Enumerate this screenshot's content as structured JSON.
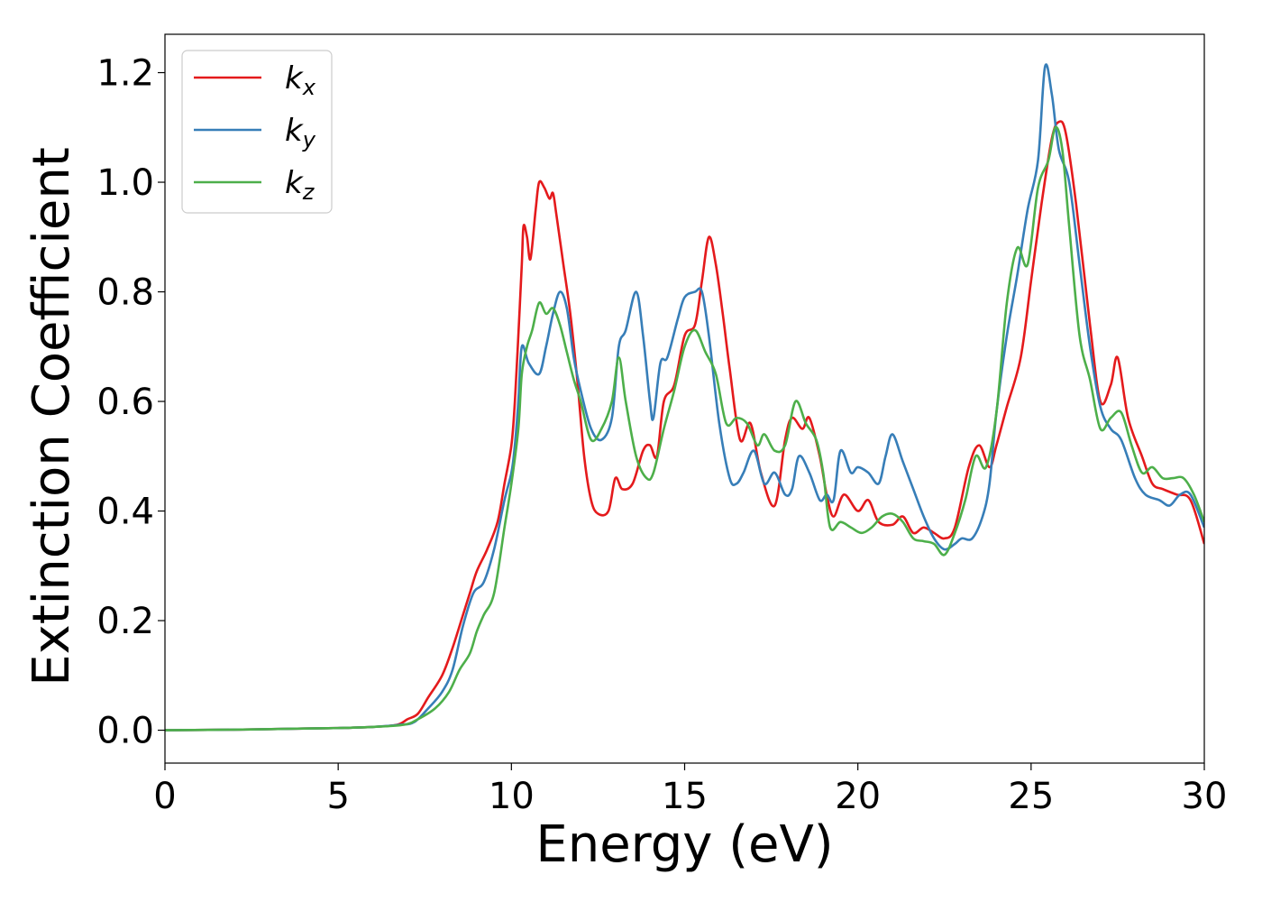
{
  "chart_data": {
    "type": "line",
    "xlabel": "Energy (eV)",
    "ylabel": "Extinction Coefficient",
    "xlim": [
      0,
      30
    ],
    "ylim": [
      -0.06,
      1.27
    ],
    "x_ticks": [
      0,
      5,
      10,
      15,
      20,
      25,
      30
    ],
    "x_tick_labels": [
      "0",
      "5",
      "10",
      "15",
      "20",
      "25",
      "30"
    ],
    "y_ticks": [
      0.0,
      0.2,
      0.4,
      0.6,
      0.8,
      1.0,
      1.2
    ],
    "y_tick_labels": [
      "0.0",
      "0.2",
      "0.4",
      "0.6",
      "0.8",
      "1.0",
      "1.2"
    ],
    "grid": false,
    "legend_position": "top-left",
    "series": [
      {
        "name": "k_x",
        "label_base": "k",
        "label_sub": "x",
        "color": "#e41a1c",
        "points": [
          [
            0,
            0.0
          ],
          [
            2,
            0.001
          ],
          [
            4,
            0.003
          ],
          [
            5,
            0.004
          ],
          [
            6,
            0.006
          ],
          [
            6.7,
            0.01
          ],
          [
            7.0,
            0.02
          ],
          [
            7.3,
            0.03
          ],
          [
            7.6,
            0.06
          ],
          [
            8.0,
            0.1
          ],
          [
            8.3,
            0.15
          ],
          [
            8.6,
            0.21
          ],
          [
            8.8,
            0.25
          ],
          [
            9.0,
            0.29
          ],
          [
            9.3,
            0.33
          ],
          [
            9.6,
            0.38
          ],
          [
            9.8,
            0.45
          ],
          [
            10.0,
            0.52
          ],
          [
            10.1,
            0.6
          ],
          [
            10.2,
            0.72
          ],
          [
            10.3,
            0.85
          ],
          [
            10.35,
            0.92
          ],
          [
            10.45,
            0.9
          ],
          [
            10.55,
            0.86
          ],
          [
            10.7,
            0.95
          ],
          [
            10.8,
            1.0
          ],
          [
            10.95,
            0.99
          ],
          [
            11.1,
            0.97
          ],
          [
            11.2,
            0.98
          ],
          [
            11.3,
            0.94
          ],
          [
            11.5,
            0.85
          ],
          [
            11.7,
            0.76
          ],
          [
            11.9,
            0.64
          ],
          [
            12.1,
            0.5
          ],
          [
            12.3,
            0.42
          ],
          [
            12.5,
            0.395
          ],
          [
            12.8,
            0.4
          ],
          [
            13.0,
            0.46
          ],
          [
            13.2,
            0.44
          ],
          [
            13.5,
            0.45
          ],
          [
            13.8,
            0.51
          ],
          [
            14.0,
            0.52
          ],
          [
            14.2,
            0.5
          ],
          [
            14.4,
            0.6
          ],
          [
            14.7,
            0.63
          ],
          [
            15.0,
            0.72
          ],
          [
            15.3,
            0.74
          ],
          [
            15.5,
            0.82
          ],
          [
            15.7,
            0.9
          ],
          [
            15.9,
            0.85
          ],
          [
            16.1,
            0.76
          ],
          [
            16.3,
            0.66
          ],
          [
            16.6,
            0.53
          ],
          [
            16.9,
            0.56
          ],
          [
            17.2,
            0.47
          ],
          [
            17.6,
            0.41
          ],
          [
            17.9,
            0.53
          ],
          [
            18.1,
            0.57
          ],
          [
            18.4,
            0.55
          ],
          [
            18.6,
            0.57
          ],
          [
            18.9,
            0.5
          ],
          [
            19.1,
            0.43
          ],
          [
            19.3,
            0.39
          ],
          [
            19.6,
            0.43
          ],
          [
            20.0,
            0.4
          ],
          [
            20.3,
            0.42
          ],
          [
            20.6,
            0.38
          ],
          [
            21.0,
            0.375
          ],
          [
            21.3,
            0.39
          ],
          [
            21.6,
            0.36
          ],
          [
            21.9,
            0.37
          ],
          [
            22.2,
            0.36
          ],
          [
            22.5,
            0.35
          ],
          [
            22.8,
            0.37
          ],
          [
            23.2,
            0.48
          ],
          [
            23.5,
            0.52
          ],
          [
            23.8,
            0.48
          ],
          [
            24.0,
            0.52
          ],
          [
            24.3,
            0.59
          ],
          [
            24.7,
            0.68
          ],
          [
            25.0,
            0.82
          ],
          [
            25.3,
            0.96
          ],
          [
            25.6,
            1.08
          ],
          [
            25.8,
            1.11
          ],
          [
            26.0,
            1.09
          ],
          [
            26.3,
            0.96
          ],
          [
            26.7,
            0.74
          ],
          [
            27.0,
            0.6
          ],
          [
            27.3,
            0.63
          ],
          [
            27.5,
            0.68
          ],
          [
            27.8,
            0.57
          ],
          [
            28.2,
            0.5
          ],
          [
            28.5,
            0.45
          ],
          [
            28.8,
            0.44
          ],
          [
            29.2,
            0.43
          ],
          [
            29.6,
            0.42
          ],
          [
            30.0,
            0.34
          ]
        ]
      },
      {
        "name": "k_y",
        "label_base": "k",
        "label_sub": "y",
        "color": "#377eb8",
        "points": [
          [
            0,
            0.0
          ],
          [
            2,
            0.001
          ],
          [
            4,
            0.003
          ],
          [
            5,
            0.004
          ],
          [
            6,
            0.006
          ],
          [
            6.8,
            0.01
          ],
          [
            7.2,
            0.015
          ],
          [
            7.6,
            0.04
          ],
          [
            8.0,
            0.07
          ],
          [
            8.3,
            0.11
          ],
          [
            8.6,
            0.19
          ],
          [
            8.9,
            0.25
          ],
          [
            9.2,
            0.27
          ],
          [
            9.5,
            0.33
          ],
          [
            9.8,
            0.42
          ],
          [
            10.0,
            0.47
          ],
          [
            10.1,
            0.52
          ],
          [
            10.2,
            0.6
          ],
          [
            10.3,
            0.7
          ],
          [
            10.5,
            0.67
          ],
          [
            10.8,
            0.65
          ],
          [
            11.0,
            0.7
          ],
          [
            11.2,
            0.76
          ],
          [
            11.4,
            0.8
          ],
          [
            11.6,
            0.77
          ],
          [
            11.8,
            0.68
          ],
          [
            12.0,
            0.62
          ],
          [
            12.3,
            0.55
          ],
          [
            12.6,
            0.53
          ],
          [
            12.9,
            0.57
          ],
          [
            13.1,
            0.7
          ],
          [
            13.3,
            0.73
          ],
          [
            13.6,
            0.8
          ],
          [
            13.8,
            0.72
          ],
          [
            14.0,
            0.6
          ],
          [
            14.1,
            0.57
          ],
          [
            14.3,
            0.67
          ],
          [
            14.5,
            0.68
          ],
          [
            14.8,
            0.75
          ],
          [
            15.0,
            0.79
          ],
          [
            15.3,
            0.8
          ],
          [
            15.5,
            0.8
          ],
          [
            15.7,
            0.72
          ],
          [
            16.0,
            0.56
          ],
          [
            16.3,
            0.46
          ],
          [
            16.5,
            0.45
          ],
          [
            16.7,
            0.47
          ],
          [
            17.0,
            0.51
          ],
          [
            17.3,
            0.45
          ],
          [
            17.6,
            0.47
          ],
          [
            17.9,
            0.43
          ],
          [
            18.1,
            0.44
          ],
          [
            18.3,
            0.5
          ],
          [
            18.6,
            0.47
          ],
          [
            18.9,
            0.42
          ],
          [
            19.1,
            0.43
          ],
          [
            19.3,
            0.42
          ],
          [
            19.5,
            0.51
          ],
          [
            19.8,
            0.47
          ],
          [
            20.0,
            0.48
          ],
          [
            20.3,
            0.47
          ],
          [
            20.6,
            0.45
          ],
          [
            20.8,
            0.5
          ],
          [
            21.0,
            0.54
          ],
          [
            21.3,
            0.49
          ],
          [
            21.6,
            0.44
          ],
          [
            21.9,
            0.39
          ],
          [
            22.2,
            0.35
          ],
          [
            22.5,
            0.33
          ],
          [
            22.8,
            0.34
          ],
          [
            23.0,
            0.35
          ],
          [
            23.3,
            0.35
          ],
          [
            23.6,
            0.39
          ],
          [
            23.8,
            0.45
          ],
          [
            24.0,
            0.58
          ],
          [
            24.3,
            0.72
          ],
          [
            24.6,
            0.83
          ],
          [
            24.9,
            0.95
          ],
          [
            25.2,
            1.04
          ],
          [
            25.4,
            1.21
          ],
          [
            25.6,
            1.16
          ],
          [
            25.8,
            1.06
          ],
          [
            26.1,
            1.0
          ],
          [
            26.4,
            0.85
          ],
          [
            26.7,
            0.7
          ],
          [
            27.0,
            0.59
          ],
          [
            27.3,
            0.55
          ],
          [
            27.6,
            0.53
          ],
          [
            28.0,
            0.46
          ],
          [
            28.3,
            0.43
          ],
          [
            28.7,
            0.42
          ],
          [
            29.0,
            0.41
          ],
          [
            29.3,
            0.43
          ],
          [
            29.6,
            0.43
          ],
          [
            30.0,
            0.37
          ]
        ]
      },
      {
        "name": "k_z",
        "label_base": "k",
        "label_sub": "z",
        "color": "#4daf4a",
        "points": [
          [
            0,
            0.0
          ],
          [
            2,
            0.001
          ],
          [
            4,
            0.003
          ],
          [
            5,
            0.004
          ],
          [
            6,
            0.006
          ],
          [
            6.9,
            0.01
          ],
          [
            7.3,
            0.02
          ],
          [
            7.8,
            0.04
          ],
          [
            8.2,
            0.07
          ],
          [
            8.5,
            0.11
          ],
          [
            8.8,
            0.14
          ],
          [
            9.0,
            0.18
          ],
          [
            9.2,
            0.21
          ],
          [
            9.5,
            0.25
          ],
          [
            9.8,
            0.37
          ],
          [
            10.0,
            0.45
          ],
          [
            10.2,
            0.55
          ],
          [
            10.3,
            0.65
          ],
          [
            10.45,
            0.7
          ],
          [
            10.6,
            0.73
          ],
          [
            10.8,
            0.78
          ],
          [
            11.0,
            0.76
          ],
          [
            11.2,
            0.77
          ],
          [
            11.4,
            0.74
          ],
          [
            11.6,
            0.69
          ],
          [
            11.8,
            0.64
          ],
          [
            12.0,
            0.6
          ],
          [
            12.3,
            0.53
          ],
          [
            12.6,
            0.55
          ],
          [
            12.9,
            0.6
          ],
          [
            13.1,
            0.68
          ],
          [
            13.3,
            0.6
          ],
          [
            13.6,
            0.5
          ],
          [
            13.9,
            0.46
          ],
          [
            14.1,
            0.47
          ],
          [
            14.4,
            0.55
          ],
          [
            14.7,
            0.62
          ],
          [
            15.0,
            0.7
          ],
          [
            15.3,
            0.73
          ],
          [
            15.6,
            0.69
          ],
          [
            15.9,
            0.65
          ],
          [
            16.2,
            0.56
          ],
          [
            16.5,
            0.57
          ],
          [
            16.8,
            0.56
          ],
          [
            17.1,
            0.52
          ],
          [
            17.3,
            0.54
          ],
          [
            17.6,
            0.51
          ],
          [
            17.9,
            0.52
          ],
          [
            18.2,
            0.6
          ],
          [
            18.5,
            0.56
          ],
          [
            18.8,
            0.53
          ],
          [
            19.0,
            0.47
          ],
          [
            19.2,
            0.37
          ],
          [
            19.5,
            0.38
          ],
          [
            19.8,
            0.37
          ],
          [
            20.1,
            0.36
          ],
          [
            20.4,
            0.37
          ],
          [
            20.7,
            0.39
          ],
          [
            21.0,
            0.395
          ],
          [
            21.3,
            0.38
          ],
          [
            21.6,
            0.35
          ],
          [
            21.9,
            0.345
          ],
          [
            22.2,
            0.34
          ],
          [
            22.5,
            0.32
          ],
          [
            22.8,
            0.36
          ],
          [
            23.1,
            0.42
          ],
          [
            23.4,
            0.5
          ],
          [
            23.7,
            0.48
          ],
          [
            24.0,
            0.58
          ],
          [
            24.3,
            0.78
          ],
          [
            24.6,
            0.88
          ],
          [
            24.9,
            0.85
          ],
          [
            25.2,
            0.99
          ],
          [
            25.5,
            1.04
          ],
          [
            25.7,
            1.1
          ],
          [
            25.9,
            1.06
          ],
          [
            26.1,
            0.92
          ],
          [
            26.4,
            0.72
          ],
          [
            26.7,
            0.64
          ],
          [
            27.0,
            0.55
          ],
          [
            27.3,
            0.57
          ],
          [
            27.6,
            0.58
          ],
          [
            27.9,
            0.52
          ],
          [
            28.2,
            0.47
          ],
          [
            28.5,
            0.48
          ],
          [
            28.8,
            0.46
          ],
          [
            29.1,
            0.46
          ],
          [
            29.4,
            0.46
          ],
          [
            29.7,
            0.43
          ],
          [
            30.0,
            0.38
          ]
        ]
      }
    ]
  }
}
